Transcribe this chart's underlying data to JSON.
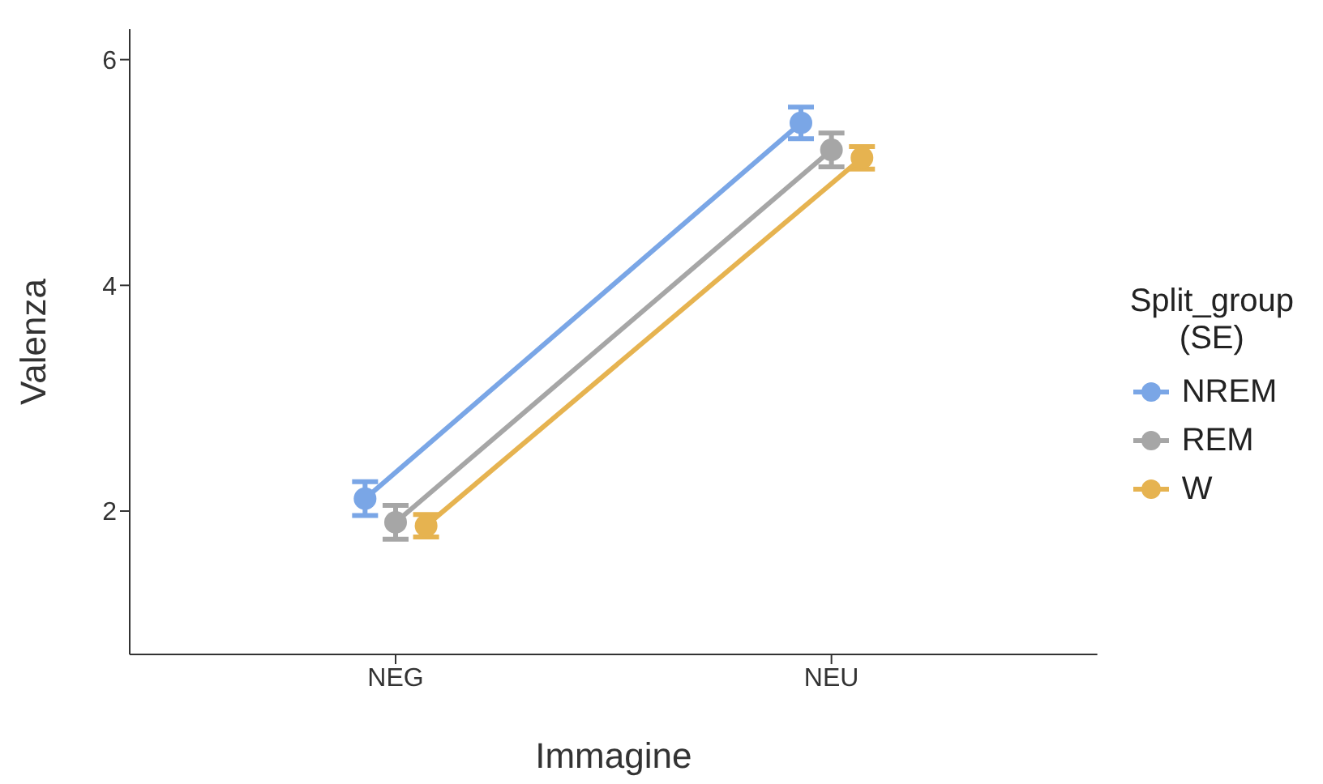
{
  "chart_data": {
    "type": "line",
    "xlabel": "Immagine",
    "ylabel": "Valenza",
    "legend_title": "Split_group\n(SE)",
    "categories": [
      "NEG",
      "NEU"
    ],
    "series": [
      {
        "name": "NREM",
        "color": "#7aa6e6",
        "values": [
          2.11,
          5.44
        ],
        "errors": [
          0.15,
          0.14
        ]
      },
      {
        "name": "REM",
        "color": "#a6a6a6",
        "values": [
          1.9,
          5.2
        ],
        "errors": [
          0.15,
          0.15
        ]
      },
      {
        "name": "W",
        "color": "#e6b350",
        "values": [
          1.87,
          5.13
        ],
        "errors": [
          0.1,
          0.1
        ]
      }
    ],
    "ylim": [
      0.73,
      6.27
    ],
    "yticks": [
      2,
      4,
      6
    ],
    "legend": "right",
    "marker": "circle",
    "line_style": "solid"
  }
}
